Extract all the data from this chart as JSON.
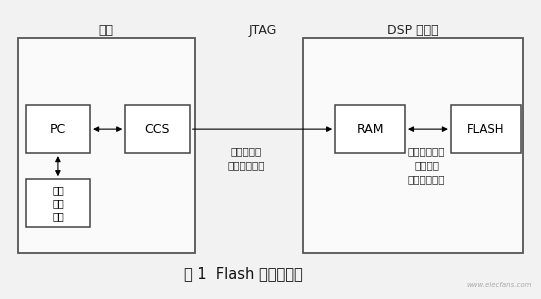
{
  "bg_color": "#f2f2f2",
  "box_bg": "#ffffff",
  "title": "图 1  Flash 烧写原理图",
  "title_fontsize": 10,
  "host_label": "主机",
  "jtag_label": "JTAG",
  "dsp_label": "DSP 目标板",
  "pc_label": "PC",
  "ccs_label": "CCS",
  "ram_label": "RAM",
  "flash_label": "FLASH",
  "user_app_label": "用户\n应用\n程序",
  "arrow_mid_label": "操作模块及\n用户应用程序",
  "arrow_right_label": "运行操作模块\n开始搬运\n用户应用程序",
  "watermark": "www.elecfans.com",
  "xlim": [
    0,
    10
  ],
  "ylim": [
    0,
    8
  ]
}
